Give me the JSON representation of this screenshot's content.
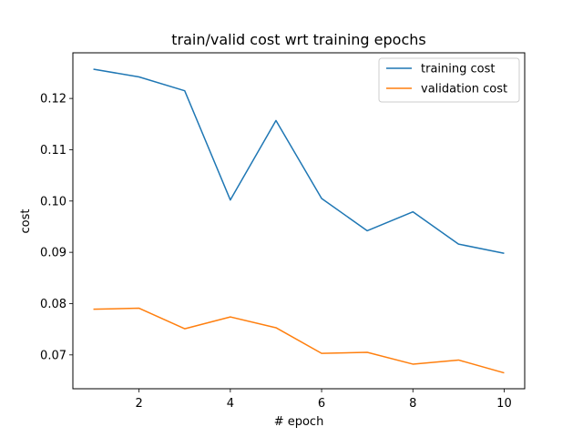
{
  "chart_data": {
    "type": "line",
    "title": "train/valid cost wrt training epochs",
    "xlabel": "# epoch",
    "ylabel": "cost",
    "x": [
      1,
      2,
      3,
      4,
      5,
      6,
      7,
      8,
      9,
      10
    ],
    "xlim": [
      0.55,
      10.45
    ],
    "ylim": [
      0.0634,
      0.1289
    ],
    "x_ticks": [
      2,
      4,
      6,
      8,
      10
    ],
    "x_tick_labels": [
      "2",
      "4",
      "6",
      "8",
      "10"
    ],
    "y_ticks": [
      0.07,
      0.08,
      0.09,
      0.1,
      0.11,
      0.12
    ],
    "y_tick_labels": [
      "0.07",
      "0.08",
      "0.09",
      "0.10",
      "0.11",
      "0.12"
    ],
    "grid": false,
    "legend_position": "top-right",
    "series": [
      {
        "name": "training cost",
        "color": "#1f77b4",
        "values": [
          0.1257,
          0.1242,
          0.1215,
          0.1002,
          0.1157,
          0.1005,
          0.0942,
          0.0979,
          0.0916,
          0.0898
        ]
      },
      {
        "name": "validation cost",
        "color": "#ff7f0e",
        "values": [
          0.0789,
          0.0791,
          0.0751,
          0.0774,
          0.0753,
          0.0703,
          0.0705,
          0.0682,
          0.069,
          0.0665
        ]
      }
    ]
  }
}
